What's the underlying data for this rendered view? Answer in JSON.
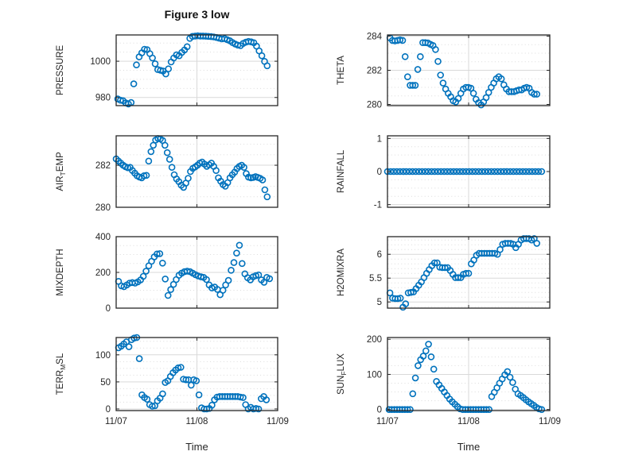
{
  "figure": {
    "title": "Figure 3 low",
    "xlabel": "Time",
    "x_tick_labels": [
      "11/07",
      "11/08",
      "11/09"
    ],
    "x_axis_unit": "days from 11/07",
    "marker_color": "#0072BD",
    "frame_color": "#262626",
    "text_color": "#262626",
    "major_grid_color": "#d9d9d9",
    "minor_grid_color": "#dbdbdb",
    "background": "#ffffff"
  },
  "chart_data": [
    {
      "type": "scatter",
      "name": "pressure",
      "ylabel": "PRESSURE",
      "ylabel_parts": [
        {
          "text": "PRESSURE",
          "sub": false
        }
      ],
      "ylim": [
        975.5,
        1014.5
      ],
      "yticks": [
        980,
        1000
      ],
      "ytick_labels": [
        "980",
        "1000"
      ],
      "yminor_step": 5,
      "x_start": 0.02,
      "x_end": 1.87,
      "values": [
        979.2,
        978.5,
        978.2,
        977.0,
        976.4,
        977.2,
        987.5,
        998.0,
        1002.4,
        1004.6,
        1006.6,
        1006.4,
        1004.2,
        1001.8,
        998.6,
        995.4,
        995.0,
        994.6,
        993.0,
        995.8,
        999.6,
        1001.8,
        1003.5,
        1003.0,
        1004.8,
        1006.2,
        1008.0,
        1012.6,
        1013.7,
        1013.9,
        1014.0,
        1013.9,
        1013.9,
        1013.8,
        1013.7,
        1013.6,
        1013.4,
        1013.1,
        1012.7,
        1012.3,
        1012.5,
        1011.9,
        1011.3,
        1010.3,
        1009.5,
        1008.9,
        1008.6,
        1009.8,
        1010.5,
        1010.9,
        1010.7,
        1010.2,
        1008.3,
        1005.7,
        1003.0,
        999.9,
        997.5
      ]
    },
    {
      "type": "scatter",
      "name": "theta",
      "ylabel": "THETA",
      "ylabel_parts": [
        {
          "text": "THETA",
          "sub": false
        }
      ],
      "ylim": [
        279.93,
        284.07
      ],
      "yticks": [
        280,
        282,
        284
      ],
      "ytick_labels": [
        "280",
        "282",
        "284"
      ],
      "yminor_step": 0.5,
      "x_start": 0.03,
      "x_end": 1.84,
      "values": [
        283.9,
        283.75,
        283.72,
        283.75,
        283.78,
        283.75,
        282.8,
        281.62,
        281.12,
        281.12,
        281.12,
        282.05,
        282.8,
        283.62,
        283.62,
        283.6,
        283.52,
        283.45,
        283.22,
        282.52,
        281.72,
        281.25,
        280.9,
        280.65,
        280.45,
        280.22,
        280.15,
        280.35,
        280.65,
        280.9,
        281.0,
        281.0,
        280.95,
        280.65,
        280.3,
        280.1,
        279.97,
        280.15,
        280.4,
        280.7,
        281.0,
        281.25,
        281.5,
        281.62,
        281.5,
        281.15,
        280.9,
        280.75,
        280.75,
        280.75,
        280.8,
        280.85,
        280.85,
        280.95,
        281.0,
        280.95,
        280.7,
        280.6,
        280.6
      ]
    },
    {
      "type": "scatter",
      "name": "airtemp",
      "ylabel": "AIR_TEMP",
      "ylabel_parts": [
        {
          "text": "AIR",
          "sub": false
        },
        {
          "text": "T",
          "sub": true
        },
        {
          "text": "EMP",
          "sub": false
        }
      ],
      "ylim": [
        280,
        283.4
      ],
      "yticks": [
        280,
        282
      ],
      "ytick_labels": [
        "280",
        "282"
      ],
      "yminor_step": 0.5,
      "x_start": 0.0,
      "x_end": 1.87,
      "values": [
        282.3,
        282.2,
        282.1,
        282.0,
        281.93,
        281.88,
        281.9,
        281.75,
        281.62,
        281.5,
        281.44,
        281.4,
        281.5,
        281.52,
        282.2,
        282.65,
        282.95,
        283.2,
        283.27,
        283.25,
        283.18,
        282.95,
        282.6,
        282.28,
        281.9,
        281.55,
        281.35,
        281.22,
        281.05,
        280.95,
        281.15,
        281.38,
        281.7,
        281.85,
        281.92,
        282.0,
        282.1,
        282.15,
        282.05,
        281.95,
        282.02,
        282.1,
        281.95,
        281.75,
        281.4,
        281.24,
        281.08,
        281.0,
        281.17,
        281.4,
        281.55,
        281.67,
        281.84,
        281.94,
        282.0,
        281.9,
        281.6,
        281.43,
        281.4,
        281.42,
        281.46,
        281.42,
        281.38,
        281.3,
        280.83,
        280.5
      ]
    },
    {
      "type": "scatter",
      "name": "rainfall",
      "ylabel": "RAINFALL",
      "ylabel_parts": [
        {
          "text": "RAINFALL",
          "sub": false
        }
      ],
      "ylim": [
        -1.08,
        1.08
      ],
      "yticks": [
        -1,
        0,
        1
      ],
      "ytick_labels": [
        "-1",
        "0",
        "1"
      ],
      "yminor_step": 0.25,
      "x_start": 0.0,
      "x_end": 1.9,
      "values": [
        0,
        0,
        0,
        0,
        0,
        0,
        0,
        0,
        0,
        0,
        0,
        0,
        0,
        0,
        0,
        0,
        0,
        0,
        0,
        0,
        0,
        0,
        0,
        0,
        0,
        0,
        0,
        0,
        0,
        0,
        0,
        0,
        0,
        0,
        0,
        0,
        0,
        0,
        0,
        0,
        0,
        0,
        0,
        0,
        0,
        0,
        0,
        0,
        0,
        0
      ]
    },
    {
      "type": "scatter",
      "name": "mixdepth",
      "ylabel": "MIXDEPTH",
      "ylabel_parts": [
        {
          "text": "MIXDEPTH",
          "sub": false
        }
      ],
      "ylim": [
        0,
        400
      ],
      "yticks": [
        0,
        200,
        400
      ],
      "ytick_labels": [
        "0",
        "200",
        "400"
      ],
      "yminor_step": 50,
      "x_start": 0.03,
      "x_end": 1.9,
      "values": [
        150,
        125,
        120,
        130,
        140,
        143,
        140,
        147,
        158,
        178,
        207,
        237,
        262,
        287,
        303,
        305,
        252,
        163,
        71,
        104,
        133,
        160,
        184,
        196,
        204,
        207,
        204,
        196,
        187,
        180,
        175,
        172,
        160,
        130,
        113,
        118,
        105,
        75,
        100,
        130,
        155,
        212,
        255,
        308,
        352,
        250,
        192,
        170,
        158,
        175,
        182,
        186,
        158,
        145,
        172,
        165
      ]
    },
    {
      "type": "scatter",
      "name": "h2omixra",
      "ylabel": "H2OMIXRA",
      "ylabel_parts": [
        {
          "text": "H2OMIXRA",
          "sub": false
        }
      ],
      "ylim": [
        4.87,
        6.37
      ],
      "yticks": [
        5,
        5.5,
        6
      ],
      "ytick_labels": [
        "5",
        "5.5",
        "6"
      ],
      "yminor_step": 0.1,
      "x_start": 0.03,
      "x_end": 1.84,
      "values": [
        5.19,
        5.08,
        5.07,
        5.07,
        5.08,
        4.89,
        4.96,
        5.19,
        5.2,
        5.21,
        5.28,
        5.35,
        5.42,
        5.51,
        5.6,
        5.68,
        5.76,
        5.82,
        5.82,
        5.73,
        5.72,
        5.72,
        5.72,
        5.66,
        5.58,
        5.51,
        5.51,
        5.51,
        5.58,
        5.6,
        5.6,
        5.8,
        5.88,
        5.98,
        6.02,
        6.02,
        6.02,
        6.02,
        6.02,
        6.02,
        6.02,
        6.0,
        6.1,
        6.21,
        6.23,
        6.23,
        6.23,
        6.21,
        6.14,
        6.21,
        6.3,
        6.33,
        6.33,
        6.33,
        6.3,
        6.33,
        6.23
      ]
    },
    {
      "type": "scatter",
      "name": "terr_msl",
      "ylabel": "TERR_MSL",
      "ylabel_parts": [
        {
          "text": "TERR",
          "sub": false
        },
        {
          "text": "M",
          "sub": true
        },
        {
          "text": "SL",
          "sub": false
        }
      ],
      "ylim": [
        -3,
        132
      ],
      "yticks": [
        0,
        50,
        100
      ],
      "ytick_labels": [
        "0",
        "50",
        "100"
      ],
      "yminor_step": 12.5,
      "x_start": 0.03,
      "x_end": 1.86,
      "values": [
        113,
        116,
        120,
        124,
        115,
        128,
        131,
        132,
        93,
        26,
        21,
        18,
        8,
        5,
        6,
        15,
        20,
        28,
        49,
        52,
        60,
        67,
        72,
        76,
        77,
        55,
        54,
        54,
        44,
        54,
        52,
        26,
        2,
        0,
        0,
        1,
        7,
        17,
        22,
        23,
        23,
        23,
        23,
        23,
        23,
        23,
        23,
        22,
        21,
        8,
        0,
        3,
        0,
        1,
        0,
        19,
        23,
        17
      ]
    },
    {
      "type": "scatter",
      "name": "sun_flux",
      "ylabel": "SUN_FLUX",
      "ylabel_parts": [
        {
          "text": "SUN",
          "sub": false
        },
        {
          "text": "F",
          "sub": true
        },
        {
          "text": "LUX",
          "sub": false
        }
      ],
      "ylim": [
        -3,
        205
      ],
      "yticks": [
        0,
        100,
        200
      ],
      "ytick_labels": [
        "0",
        "100",
        "200"
      ],
      "yminor_step": 25,
      "x_start": 0.02,
      "x_end": 1.9,
      "values": [
        0,
        0,
        0,
        0,
        0,
        0,
        0,
        0,
        0,
        45,
        90,
        125,
        142,
        152,
        167,
        186,
        150,
        115,
        80,
        70,
        60,
        50,
        40,
        30,
        22,
        15,
        8,
        2,
        0,
        0,
        0,
        0,
        0,
        0,
        0,
        0,
        0,
        0,
        0,
        37,
        49,
        62,
        75,
        87,
        99,
        108,
        92,
        77,
        58,
        45,
        40,
        34,
        28,
        22,
        17,
        12,
        6,
        2,
        0
      ]
    }
  ]
}
